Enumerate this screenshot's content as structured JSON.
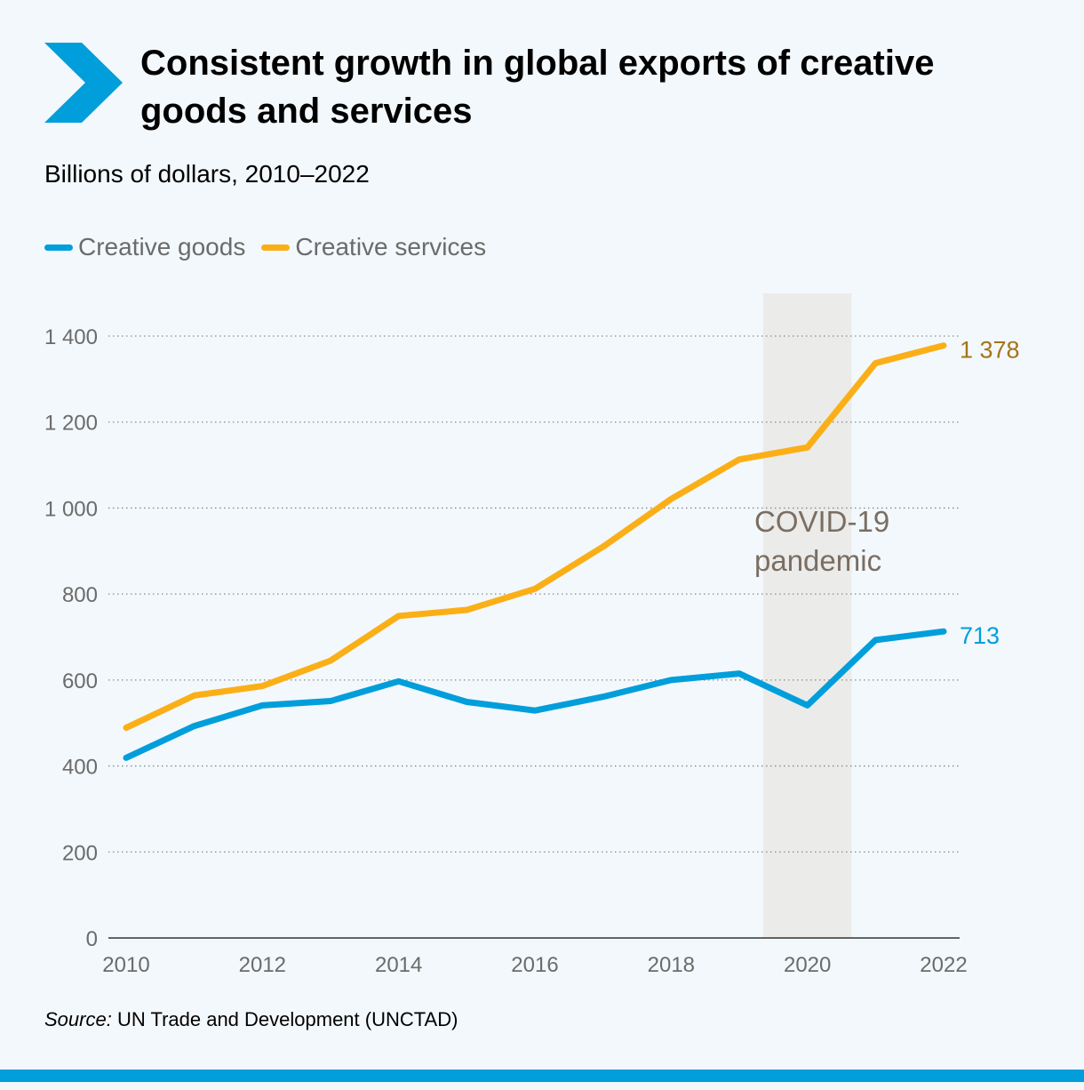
{
  "header": {
    "title": "Consistent growth in global exports of creative goods and services",
    "subtitle": "Billions of dollars, 2010–2022"
  },
  "source": {
    "label": "Source:",
    "text": "UN Trade and Development (UNCTAD)"
  },
  "colors": {
    "goods": "#009edb",
    "services": "#fbaf17",
    "services_label": "#a4741a",
    "axis_text": "#6b6b6b",
    "pandemic_band": "#ebebea",
    "accent": "#009edb"
  },
  "chart_data": {
    "type": "line",
    "x": [
      2010,
      2011,
      2012,
      2013,
      2014,
      2015,
      2016,
      2017,
      2018,
      2019,
      2020,
      2021,
      2022
    ],
    "series": [
      {
        "name": "Creative goods",
        "values": [
          419,
          493,
          541,
          551,
          597,
          549,
          529,
          561,
          600,
          615,
          541,
          693,
          713
        ],
        "end_label": "713"
      },
      {
        "name": "Creative services",
        "values": [
          489,
          564,
          586,
          645,
          749,
          763,
          812,
          910,
          1021,
          1113,
          1141,
          1337,
          1378
        ],
        "end_label": "1 378"
      }
    ],
    "ylim": [
      0,
      1400
    ],
    "yticks": [
      {
        "value": 0,
        "label": "0"
      },
      {
        "value": 200,
        "label": "200"
      },
      {
        "value": 400,
        "label": "400"
      },
      {
        "value": 600,
        "label": "600"
      },
      {
        "value": 800,
        "label": "800"
      },
      {
        "value": 1000,
        "label": "1 000"
      },
      {
        "value": 1200,
        "label": "1 200"
      },
      {
        "value": 1400,
        "label": "1 400"
      }
    ],
    "xticks": [
      2010,
      2012,
      2014,
      2016,
      2018,
      2020,
      2022
    ],
    "grid": true,
    "legend_position": "top-left",
    "annotation": {
      "lines": [
        "COVID-19",
        "pandemic"
      ],
      "x_start": 2019.35,
      "x_end": 2020.65
    }
  }
}
